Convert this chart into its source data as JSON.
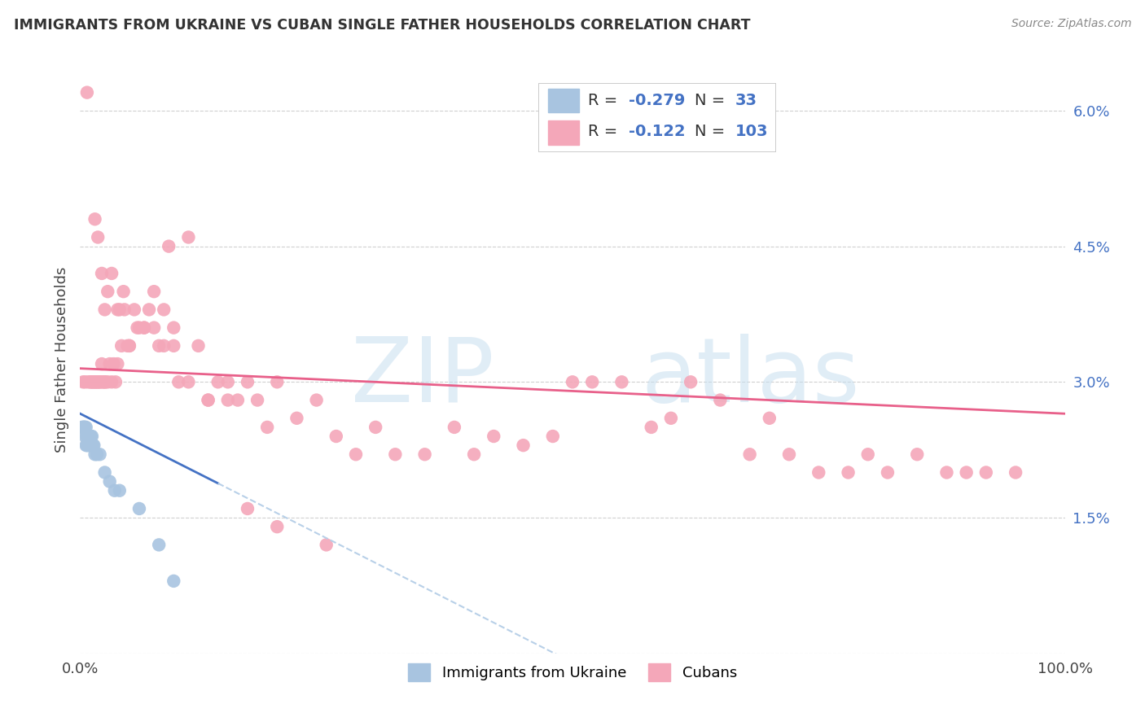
{
  "title": "IMMIGRANTS FROM UKRAINE VS CUBAN SINGLE FATHER HOUSEHOLDS CORRELATION CHART",
  "source": "Source: ZipAtlas.com",
  "ylabel": "Single Father Households",
  "yticks": [
    0.0,
    0.015,
    0.03,
    0.045,
    0.06
  ],
  "ytick_labels": [
    "",
    "1.5%",
    "3.0%",
    "4.5%",
    "6.0%"
  ],
  "xlim": [
    0.0,
    1.0
  ],
  "ylim": [
    0.0,
    0.065
  ],
  "ukraine_color": "#a8c4e0",
  "cuban_color": "#f4a7b9",
  "ukraine_line_color": "#4472c4",
  "cuban_line_color": "#e8608a",
  "trendline_extend_color": "#b8d0e8",
  "legend_text_color": "#4472c4",
  "background_color": "#ffffff",
  "grid_color": "#d0d0d0",
  "ukraine_x": [
    0.002,
    0.003,
    0.004,
    0.004,
    0.005,
    0.005,
    0.006,
    0.006,
    0.007,
    0.007,
    0.007,
    0.008,
    0.008,
    0.009,
    0.009,
    0.01,
    0.01,
    0.01,
    0.011,
    0.011,
    0.012,
    0.013,
    0.014,
    0.015,
    0.017,
    0.02,
    0.025,
    0.03,
    0.035,
    0.04,
    0.06,
    0.08,
    0.095
  ],
  "ukraine_y": [
    0.025,
    0.025,
    0.025,
    0.025,
    0.024,
    0.025,
    0.023,
    0.025,
    0.023,
    0.024,
    0.024,
    0.023,
    0.024,
    0.024,
    0.024,
    0.023,
    0.023,
    0.024,
    0.023,
    0.024,
    0.024,
    0.023,
    0.023,
    0.022,
    0.022,
    0.022,
    0.02,
    0.019,
    0.018,
    0.018,
    0.016,
    0.012,
    0.008
  ],
  "cuban_x": [
    0.003,
    0.005,
    0.007,
    0.008,
    0.01,
    0.011,
    0.012,
    0.013,
    0.014,
    0.015,
    0.016,
    0.017,
    0.018,
    0.019,
    0.02,
    0.021,
    0.022,
    0.023,
    0.024,
    0.025,
    0.026,
    0.028,
    0.03,
    0.032,
    0.034,
    0.036,
    0.038,
    0.04,
    0.042,
    0.045,
    0.048,
    0.05,
    0.055,
    0.06,
    0.065,
    0.07,
    0.075,
    0.08,
    0.085,
    0.09,
    0.095,
    0.1,
    0.11,
    0.12,
    0.13,
    0.14,
    0.15,
    0.16,
    0.17,
    0.18,
    0.19,
    0.2,
    0.22,
    0.24,
    0.26,
    0.28,
    0.3,
    0.32,
    0.35,
    0.38,
    0.4,
    0.42,
    0.45,
    0.48,
    0.5,
    0.52,
    0.55,
    0.58,
    0.6,
    0.62,
    0.65,
    0.68,
    0.7,
    0.72,
    0.75,
    0.78,
    0.8,
    0.82,
    0.85,
    0.88,
    0.9,
    0.92,
    0.95,
    0.015,
    0.018,
    0.022,
    0.025,
    0.028,
    0.032,
    0.038,
    0.044,
    0.05,
    0.058,
    0.065,
    0.075,
    0.085,
    0.095,
    0.11,
    0.13,
    0.15,
    0.17,
    0.2,
    0.25
  ],
  "cuban_y": [
    0.03,
    0.03,
    0.062,
    0.03,
    0.03,
    0.03,
    0.03,
    0.03,
    0.03,
    0.03,
    0.03,
    0.03,
    0.03,
    0.03,
    0.03,
    0.03,
    0.032,
    0.03,
    0.03,
    0.03,
    0.03,
    0.03,
    0.032,
    0.03,
    0.032,
    0.03,
    0.032,
    0.038,
    0.034,
    0.038,
    0.034,
    0.034,
    0.038,
    0.036,
    0.036,
    0.038,
    0.036,
    0.034,
    0.034,
    0.045,
    0.034,
    0.03,
    0.03,
    0.034,
    0.028,
    0.03,
    0.03,
    0.028,
    0.03,
    0.028,
    0.025,
    0.03,
    0.026,
    0.028,
    0.024,
    0.022,
    0.025,
    0.022,
    0.022,
    0.025,
    0.022,
    0.024,
    0.023,
    0.024,
    0.03,
    0.03,
    0.03,
    0.025,
    0.026,
    0.03,
    0.028,
    0.022,
    0.026,
    0.022,
    0.02,
    0.02,
    0.022,
    0.02,
    0.022,
    0.02,
    0.02,
    0.02,
    0.02,
    0.048,
    0.046,
    0.042,
    0.038,
    0.04,
    0.042,
    0.038,
    0.04,
    0.034,
    0.036,
    0.036,
    0.04,
    0.038,
    0.036,
    0.046,
    0.028,
    0.028,
    0.016,
    0.014,
    0.012
  ],
  "ukraine_trend_x0": 0.0,
  "ukraine_trend_y0": 0.0265,
  "ukraine_trend_solid_x1": 0.14,
  "ukraine_trend_dashed_x1": 0.5,
  "ukraine_trend_slope": -0.055,
  "cuban_trend_x0": 0.0,
  "cuban_trend_y0": 0.0315,
  "cuban_trend_x1": 1.0,
  "cuban_trend_slope": -0.005
}
